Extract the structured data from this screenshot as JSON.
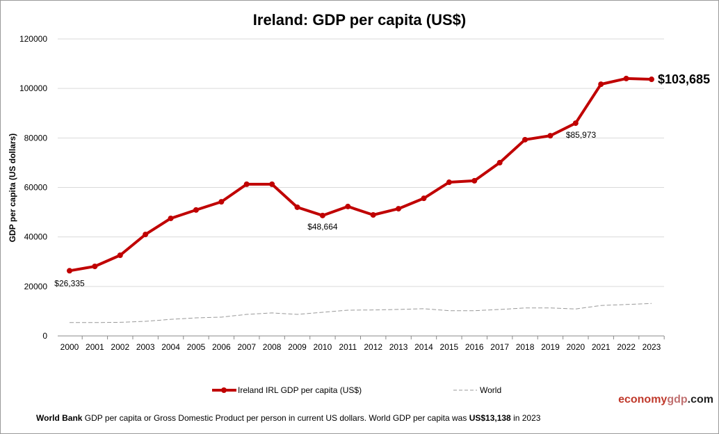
{
  "chart_data": {
    "type": "line",
    "title": "Ireland: GDP per capita (US$)",
    "ylabel": "GDP per capita (US dollars)",
    "xlabel": "",
    "ylim": [
      0,
      120000
    ],
    "yticks": [
      "0",
      "20000",
      "40000",
      "60000",
      "80000",
      "100000",
      "120000"
    ],
    "grid": true,
    "legend_position": "bottom",
    "categories": [
      "2000",
      "2001",
      "2002",
      "2003",
      "2004",
      "2005",
      "2006",
      "2007",
      "2008",
      "2009",
      "2010",
      "2011",
      "2012",
      "2013",
      "2014",
      "2015",
      "2016",
      "2017",
      "2018",
      "2019",
      "2020",
      "2021",
      "2022",
      "2023"
    ],
    "series": [
      {
        "name": "Ireland IRL GDP per capita (US$)",
        "color": "#c00000",
        "values": [
          26335,
          28100,
          32600,
          41000,
          47500,
          50900,
          54200,
          61300,
          61300,
          52000,
          48664,
          52300,
          48900,
          51400,
          55600,
          62100,
          62700,
          70000,
          79300,
          80900,
          85973,
          101700,
          104000,
          103685
        ]
      },
      {
        "name": "World",
        "color": "#999999",
        "values": [
          5400,
          5400,
          5500,
          5900,
          6700,
          7300,
          7600,
          8700,
          9300,
          8700,
          9550,
          10400,
          10500,
          10700,
          11000,
          10200,
          10200,
          10700,
          11300,
          11300,
          10900,
          12300,
          12700,
          13138
        ]
      }
    ],
    "annotations": [
      {
        "year": "2000",
        "text": "$26,335"
      },
      {
        "year": "2010",
        "text": "$48,664"
      },
      {
        "year": "2020",
        "text": "$85,973"
      },
      {
        "year": "2023",
        "text": "$103,685"
      }
    ]
  },
  "footer": {
    "source_bold": "World Bank",
    "text": " GDP per capita or Gross Domestic Product per person  in current US dollars.   World GDP per capita was ",
    "value_bold": "US$13,138",
    "year_text": "  in 2023"
  },
  "brand": {
    "part1": "economy",
    "part2": "gdp",
    "part3": ".com"
  }
}
